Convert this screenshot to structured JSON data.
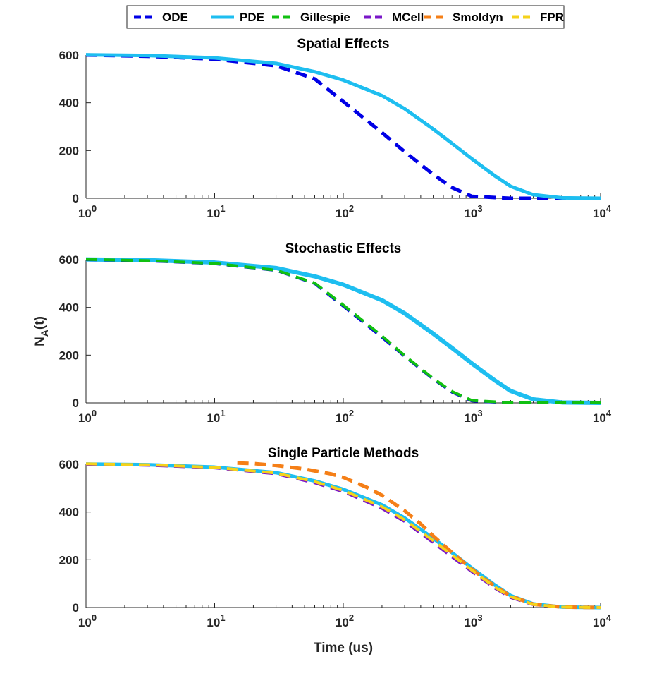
{
  "legend": {
    "placement": "top-center",
    "items": [
      {
        "label": "ODE",
        "color": "#0000E6",
        "dash": "dashed"
      },
      {
        "label": "PDE",
        "color": "#1EBEF0",
        "dash": "solid"
      },
      {
        "label": "Gillespie",
        "color": "#11C011",
        "dash": "dashed"
      },
      {
        "label": "MCell",
        "color": "#7A17C8",
        "dash": "dashed"
      },
      {
        "label": "Smoldyn",
        "color": "#F57F17",
        "dash": "dashed"
      },
      {
        "label": "FPR",
        "color": "#F5D21A",
        "dash": "dashed"
      }
    ]
  },
  "chart_data": [
    {
      "type": "line",
      "title": "Spatial Effects",
      "xlabel": "",
      "ylabel": "",
      "xscale": "log",
      "xlim": [
        1,
        10000
      ],
      "ylim": [
        0,
        600
      ],
      "xticks": [
        "10^0",
        "10^1",
        "10^2",
        "10^3",
        "10^4"
      ],
      "yticks": [
        0,
        200,
        400,
        600
      ],
      "grid": false,
      "series": [
        {
          "name": "ODE",
          "color": "#0000E6",
          "dash": "dashed",
          "width": 5,
          "x": [
            1,
            3,
            10,
            30,
            60,
            100,
            200,
            300,
            500,
            700,
            1000,
            2000,
            5000,
            10000
          ],
          "y": [
            600,
            595,
            583,
            555,
            500,
            405,
            275,
            195,
            100,
            45,
            8,
            0,
            0,
            0
          ]
        },
        {
          "name": "PDE",
          "color": "#1EBEF0",
          "dash": "solid",
          "width": 5,
          "x": [
            1,
            3,
            10,
            30,
            60,
            100,
            200,
            300,
            500,
            700,
            1000,
            1500,
            2000,
            3000,
            5000,
            10000
          ],
          "y": [
            601,
            598,
            588,
            565,
            530,
            495,
            430,
            375,
            290,
            230,
            165,
            95,
            50,
            15,
            2,
            0
          ]
        }
      ]
    },
    {
      "type": "line",
      "title": "Stochastic Effects",
      "xlabel": "",
      "ylabel": "N_A(t)",
      "xscale": "log",
      "xlim": [
        1,
        10000
      ],
      "ylim": [
        0,
        600
      ],
      "xticks": [
        "10^0",
        "10^1",
        "10^2",
        "10^3",
        "10^4"
      ],
      "yticks": [
        0,
        200,
        400,
        600
      ],
      "grid": false,
      "series": [
        {
          "name": "PDE",
          "color": "#1EBEF0",
          "dash": "solid",
          "width": 6,
          "x": [
            1,
            3,
            10,
            30,
            60,
            100,
            200,
            300,
            500,
            700,
            1000,
            1500,
            2000,
            3000,
            5000,
            10000
          ],
          "y": [
            601,
            598,
            588,
            565,
            530,
            495,
            430,
            375,
            290,
            230,
            165,
            95,
            50,
            15,
            2,
            0
          ]
        },
        {
          "name": "ODE",
          "color": "#0000E6",
          "dash": "dashed",
          "width": 4,
          "x": [
            1,
            3,
            10,
            30,
            60,
            100,
            200,
            300,
            500,
            700,
            1000,
            2000,
            5000,
            10000
          ],
          "y": [
            600,
            595,
            583,
            555,
            500,
            405,
            275,
            195,
            100,
            45,
            8,
            0,
            0,
            0
          ]
        },
        {
          "name": "Gillespie",
          "color": "#11C011",
          "dash": "dashed",
          "width": 4,
          "x": [
            1,
            3,
            10,
            30,
            60,
            100,
            200,
            300,
            500,
            700,
            1000,
            2000,
            5000,
            10000
          ],
          "y": [
            601,
            596,
            584,
            556,
            502,
            410,
            280,
            198,
            102,
            48,
            10,
            1,
            0,
            0
          ]
        }
      ]
    },
    {
      "type": "line",
      "title": "Single Particle Methods",
      "xlabel": "Time (us)",
      "ylabel": "",
      "xscale": "log",
      "xlim": [
        1,
        10000
      ],
      "ylim": [
        0,
        600
      ],
      "xticks": [
        "10^0",
        "10^1",
        "10^2",
        "10^3",
        "10^4"
      ],
      "yticks": [
        0,
        200,
        400,
        600
      ],
      "grid": false,
      "series": [
        {
          "name": "PDE",
          "color": "#1EBEF0",
          "dash": "solid",
          "width": 5,
          "x": [
            1,
            3,
            10,
            30,
            60,
            100,
            200,
            300,
            500,
            700,
            1000,
            1500,
            2000,
            3000,
            5000,
            10000
          ],
          "y": [
            601,
            598,
            588,
            565,
            530,
            495,
            430,
            375,
            290,
            230,
            165,
            95,
            50,
            15,
            2,
            0
          ]
        },
        {
          "name": "MCell",
          "color": "#7A17C8",
          "dash": "dashed",
          "width": 4,
          "x": [
            1,
            3,
            10,
            30,
            60,
            100,
            200,
            300,
            500,
            700,
            1000,
            1500,
            2000,
            3000,
            5000,
            10000
          ],
          "y": [
            600,
            596,
            585,
            560,
            522,
            485,
            415,
            360,
            272,
            212,
            150,
            82,
            42,
            12,
            2,
            0
          ]
        },
        {
          "name": "Smoldyn",
          "color": "#F57F17",
          "dash": "dashed",
          "width": 5,
          "x": [
            15,
            20,
            30,
            50,
            80,
            100,
            150,
            200,
            300,
            400,
            500,
            700,
            1000,
            1500,
            2000,
            3000,
            5000,
            10000
          ],
          "y": [
            605,
            603,
            595,
            580,
            560,
            545,
            505,
            470,
            405,
            350,
            300,
            230,
            160,
            90,
            48,
            14,
            2,
            0
          ]
        },
        {
          "name": "FPR",
          "color": "#F5D21A",
          "dash": "dashed",
          "width": 4,
          "x": [
            1,
            3,
            10,
            30,
            60,
            100,
            200,
            300,
            500,
            700,
            1000,
            1500,
            2000,
            3000,
            5000,
            10000
          ],
          "y": [
            602,
            598,
            587,
            563,
            527,
            490,
            422,
            367,
            280,
            220,
            156,
            86,
            45,
            13,
            2,
            0
          ]
        }
      ]
    }
  ]
}
